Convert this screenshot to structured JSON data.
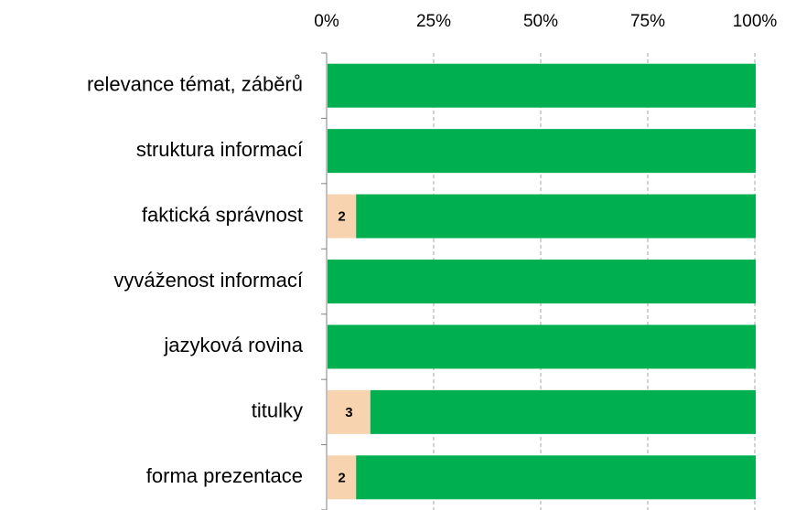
{
  "chart_data": {
    "type": "bar",
    "orientation": "horizontal",
    "stacking": "percent",
    "categories": [
      "relevance témat, záběrů",
      "struktura informací",
      "faktická správnost",
      "vyváženost informací",
      "jazyková rovina",
      "titulky",
      "forma prezentace"
    ],
    "series": [
      {
        "color": "#f8d3b0",
        "values": [
          null,
          null,
          2,
          null,
          null,
          3,
          2
        ],
        "value_labels": [
          null,
          null,
          "2",
          null,
          null,
          "3",
          "2"
        ]
      },
      {
        "color": "#00b050",
        "values": [
          30,
          30,
          28,
          30,
          30,
          27,
          28
        ]
      }
    ],
    "xlim": [
      0,
      100
    ],
    "xticks": [
      {
        "value": 0,
        "label": "0%"
      },
      {
        "value": 25,
        "label": "25%"
      },
      {
        "value": 50,
        "label": "50%"
      },
      {
        "value": 75,
        "label": "75%"
      },
      {
        "value": 100,
        "label": "100%"
      }
    ],
    "grid": true
  }
}
